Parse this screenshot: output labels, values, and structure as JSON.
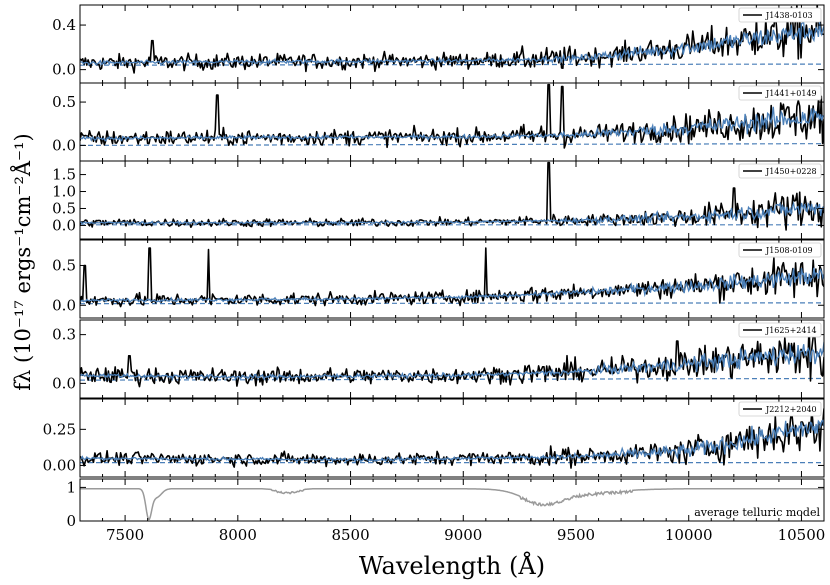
{
  "colors": {
    "observed": "#000000",
    "model": "#4a7fb8",
    "telluric": "#9a9a9a"
  },
  "chart_data": {
    "type": "line",
    "xlabel": "Wavelength (Å)",
    "ylabel": "fλ (10⁻¹⁷ ergs⁻¹cm⁻²Å⁻¹)",
    "xlim": [
      7300,
      10600
    ],
    "x_ticks": [
      7500,
      8000,
      8500,
      9000,
      9500,
      10000,
      10500
    ],
    "x_tick_labels": [
      "7500",
      "8000",
      "8500",
      "9000",
      "9500",
      "10000",
      "10500"
    ],
    "grid": false,
    "legend_position": "top-right",
    "panels": [
      {
        "name": "J1438-0103",
        "ylim": [
          -0.12,
          0.58
        ],
        "y_ticks": [
          0.0,
          0.4
        ],
        "y_tick_labels": [
          "0.0",
          "0.4"
        ],
        "noise": 0.035,
        "noise_red": 0.13,
        "model": [
          [
            7300,
            0.06
          ],
          [
            8000,
            0.07
          ],
          [
            9000,
            0.08
          ],
          [
            9500,
            0.1
          ],
          [
            10000,
            0.2
          ],
          [
            10600,
            0.36
          ]
        ],
        "continuum": [
          [
            7300,
            0.04
          ],
          [
            10600,
            0.05
          ]
        ],
        "spikes": [
          [
            7620,
            0.26
          ],
          [
            10300,
            0.46
          ]
        ]
      },
      {
        "name": "J1441+0149",
        "ylim": [
          -0.18,
          0.72
        ],
        "y_ticks": [
          0.0,
          0.5
        ],
        "y_tick_labels": [
          "0.0",
          "0.5"
        ],
        "noise": 0.045,
        "noise_red": 0.16,
        "model": [
          [
            7300,
            0.08
          ],
          [
            8000,
            0.09
          ],
          [
            9000,
            0.1
          ],
          [
            9500,
            0.12
          ],
          [
            10000,
            0.2
          ],
          [
            10600,
            0.34
          ]
        ],
        "continuum": [
          [
            7300,
            0.0
          ],
          [
            10600,
            0.02
          ]
        ],
        "spikes": [
          [
            7910,
            0.58
          ],
          [
            9380,
            0.7
          ],
          [
            9440,
            0.68
          ]
        ]
      },
      {
        "name": "J1450+0228",
        "ylim": [
          -0.4,
          1.9
        ],
        "y_ticks": [
          0.0,
          0.5,
          1.0,
          1.5
        ],
        "y_tick_labels": [
          "0.0",
          "0.5",
          "1.0",
          "1.5"
        ],
        "noise": 0.06,
        "noise_red": 0.35,
        "model": [
          [
            7300,
            0.08
          ],
          [
            8500,
            0.08
          ],
          [
            9000,
            0.1
          ],
          [
            9500,
            0.15
          ],
          [
            10000,
            0.25
          ],
          [
            10600,
            0.55
          ]
        ],
        "continuum": [
          [
            7300,
            0.02
          ],
          [
            10600,
            0.02
          ]
        ],
        "spikes": [
          [
            9380,
            1.85
          ],
          [
            10200,
            1.1
          ]
        ]
      },
      {
        "name": "J1508-0109",
        "ylim": [
          -0.16,
          0.82
        ],
        "y_ticks": [
          0.0,
          0.5
        ],
        "y_tick_labels": [
          "0.0",
          "0.5"
        ],
        "noise": 0.04,
        "noise_red": 0.15,
        "model": [
          [
            7300,
            0.06
          ],
          [
            8500,
            0.08
          ],
          [
            9000,
            0.1
          ],
          [
            9500,
            0.16
          ],
          [
            10000,
            0.24
          ],
          [
            10600,
            0.38
          ]
        ],
        "continuum": [
          [
            7300,
            0.02
          ],
          [
            10600,
            0.03
          ]
        ],
        "spikes": [
          [
            7320,
            0.5
          ],
          [
            7610,
            0.72
          ],
          [
            7870,
            0.7
          ],
          [
            9100,
            0.72
          ]
        ]
      },
      {
        "name": "J1625+2414",
        "ylim": [
          -0.09,
          0.39
        ],
        "y_ticks": [
          0.0,
          0.3
        ],
        "y_tick_labels": [
          "0.0",
          "0.3"
        ],
        "noise": 0.025,
        "noise_red": 0.09,
        "model": [
          [
            7300,
            0.05
          ],
          [
            8000,
            0.04
          ],
          [
            9000,
            0.05
          ],
          [
            9500,
            0.07
          ],
          [
            10000,
            0.12
          ],
          [
            10600,
            0.2
          ]
        ],
        "continuum": [
          [
            7300,
            0.02
          ],
          [
            10600,
            0.03
          ]
        ],
        "spikes": [
          [
            7520,
            0.17
          ],
          [
            9950,
            0.26
          ]
        ]
      },
      {
        "name": "J2212+2040",
        "ylim": [
          -0.08,
          0.46
        ],
        "y_ticks": [
          0.0,
          0.25
        ],
        "y_tick_labels": [
          "0.00",
          "0.25"
        ],
        "noise": 0.022,
        "noise_red": 0.1,
        "model": [
          [
            7300,
            0.05
          ],
          [
            8500,
            0.04
          ],
          [
            9500,
            0.06
          ],
          [
            10000,
            0.1
          ],
          [
            10600,
            0.28
          ]
        ],
        "continuum": [
          [
            7300,
            0.02
          ],
          [
            10600,
            0.02
          ]
        ],
        "spikes": [
          [
            10500,
            0.3
          ]
        ]
      }
    ],
    "telluric_panel": {
      "label": "average telluric model",
      "ylim": [
        0,
        1.25
      ],
      "y_ticks": [
        0,
        1
      ],
      "y_tick_labels": [
        "0",
        "1"
      ],
      "baseline": 0.96,
      "absorption_bands": [
        {
          "center": 7605,
          "width": 18,
          "depth": 0.85
        },
        {
          "center": 7640,
          "width": 30,
          "depth": 0.25
        },
        {
          "center": 8220,
          "width": 60,
          "depth": 0.1
        },
        {
          "center": 9350,
          "width": 120,
          "depth": 0.35
        },
        {
          "center": 9500,
          "width": 250,
          "depth": 0.12
        }
      ]
    }
  }
}
